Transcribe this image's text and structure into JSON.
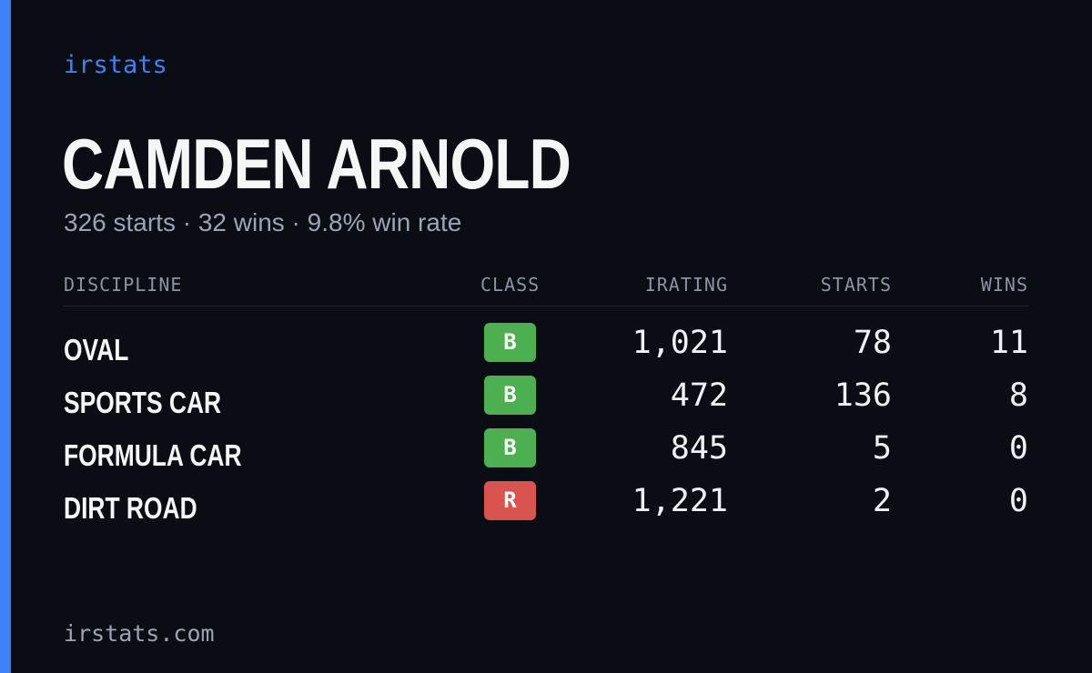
{
  "brand": {
    "name": "irstats",
    "accent_color": "#3b82f6"
  },
  "player": {
    "name": "CAMDEN ARNOLD",
    "summary": "326 starts · 32 wins · 9.8% win rate"
  },
  "table": {
    "headers": {
      "discipline": "DISCIPLINE",
      "class": "CLASS",
      "irating": "IRATING",
      "starts": "STARTS",
      "wins": "WINS"
    },
    "rows": [
      {
        "discipline": "OVAL",
        "class": "B",
        "class_color": "#4caf50",
        "irating": "1,021",
        "starts": "78",
        "wins": "11"
      },
      {
        "discipline": "SPORTS CAR",
        "class": "B",
        "class_color": "#4caf50",
        "irating": "472",
        "starts": "136",
        "wins": "8"
      },
      {
        "discipline": "FORMULA CAR",
        "class": "B",
        "class_color": "#4caf50",
        "irating": "845",
        "starts": "5",
        "wins": "0"
      },
      {
        "discipline": "DIRT ROAD",
        "class": "R",
        "class_color": "#d9534f",
        "irating": "1,221",
        "starts": "2",
        "wins": "0"
      }
    ]
  },
  "footer": {
    "domain": "irstats.com"
  }
}
